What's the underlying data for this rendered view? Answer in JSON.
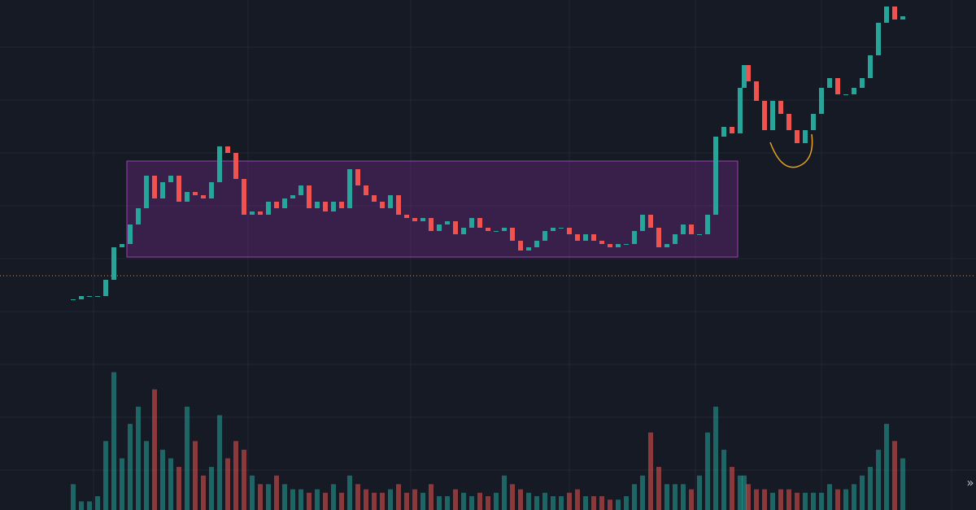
{
  "chart_data": {
    "type": "candlestick",
    "x": [
      90,
      100,
      110,
      120,
      130,
      140,
      150,
      160,
      170,
      180,
      190,
      200,
      210,
      220,
      230,
      240,
      250,
      260,
      270,
      280,
      290,
      300,
      310,
      320,
      330,
      340,
      350,
      360,
      370,
      380,
      390,
      400,
      410,
      420,
      430,
      440,
      450,
      460,
      470,
      480,
      490,
      500,
      510,
      520,
      530,
      540,
      550,
      560,
      570,
      580,
      590,
      600,
      610,
      620,
      630,
      640,
      650,
      660,
      670,
      680,
      690,
      700,
      710,
      720,
      730,
      740,
      750,
      760,
      770,
      780,
      790,
      800,
      810,
      820,
      830,
      840,
      850,
      860,
      870,
      880,
      890,
      900,
      910,
      915,
      920,
      930,
      940,
      950,
      960,
      970,
      980,
      990,
      1000,
      1010,
      1020,
      1030,
      1040,
      1050,
      1060,
      1070,
      1080,
      1090,
      1100,
      1110
    ],
    "values": [
      13,
      14,
      14,
      14,
      19,
      29,
      30,
      36,
      41,
      51,
      44,
      49,
      51,
      43,
      46,
      45,
      44,
      49,
      60,
      58,
      50,
      39,
      40,
      39,
      43,
      41,
      44,
      45,
      48,
      41,
      43,
      40,
      43,
      41,
      53,
      48,
      45,
      43,
      41,
      45,
      39,
      38,
      37,
      38,
      34,
      36,
      37,
      33,
      35,
      38,
      35,
      34,
      34,
      35,
      31,
      28,
      29,
      31,
      34,
      35,
      35,
      33,
      31,
      33,
      31,
      30,
      29,
      30,
      30,
      34,
      39,
      35,
      29,
      30,
      33,
      36,
      33,
      33,
      39,
      63,
      66,
      64,
      78,
      85,
      80,
      74,
      65,
      74,
      70,
      65,
      61,
      65,
      70,
      78,
      81,
      76,
      76,
      78,
      81,
      88,
      98,
      103,
      99,
      100
    ],
    "volume": {
      "values": [
        15,
        5,
        5,
        8,
        40,
        80,
        30,
        50,
        60,
        40,
        70,
        35,
        30,
        25,
        60,
        40,
        20,
        25,
        55,
        30,
        40,
        35,
        20,
        15,
        15,
        20,
        15,
        12,
        12,
        10,
        12,
        10,
        15,
        10,
        20,
        15,
        12,
        10,
        10,
        12,
        15,
        10,
        12,
        10,
        15,
        8,
        8,
        12,
        10,
        8,
        10,
        8,
        10,
        20,
        15,
        12,
        10,
        8,
        10,
        8,
        8,
        10,
        12,
        8,
        8,
        8,
        6,
        6,
        8,
        15,
        20,
        45,
        25,
        15,
        15,
        15,
        12,
        20,
        45,
        60,
        35,
        25,
        20,
        20,
        15,
        12,
        12,
        10,
        12,
        12,
        10,
        10,
        10,
        10,
        15,
        12,
        12,
        15,
        20,
        25,
        35,
        50,
        40,
        30
      ],
      "ylim": [
        0,
        85
      ]
    },
    "xlim": [
      0,
      1200
    ],
    "ylim": [
      0,
      105
    ],
    "up_color": "#26a69a",
    "down_color": "#ef5350",
    "grid": true
  },
  "ui": {
    "scroll_button": "»"
  }
}
